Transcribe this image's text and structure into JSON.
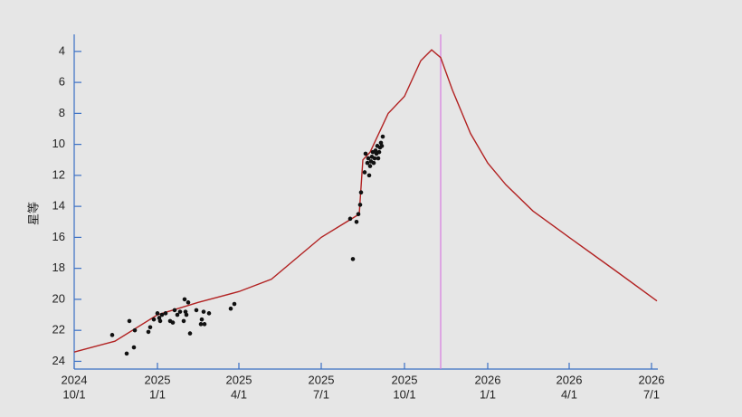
{
  "chart_data": {
    "type": "scatter",
    "y_label": "星等",
    "ylim": [
      24.5,
      2.9
    ],
    "y_inverted": true,
    "yticks": [
      4,
      6,
      8,
      10,
      12,
      14,
      16,
      18,
      20,
      22,
      24
    ],
    "xlim": [
      "2024-10-01",
      "2026-07-08"
    ],
    "xticks": [
      {
        "value": "2024-10-01",
        "label": [
          "2024",
          "10/1"
        ]
      },
      {
        "value": "2025-01-01",
        "label": [
          "2025",
          "1/1"
        ]
      },
      {
        "value": "2025-04-01",
        "label": [
          "2025",
          "4/1"
        ]
      },
      {
        "value": "2025-07-01",
        "label": [
          "2025",
          "7/1"
        ]
      },
      {
        "value": "2025-10-01",
        "label": [
          "2025",
          "10/1"
        ]
      },
      {
        "value": "2026-01-01",
        "label": [
          "2026",
          "1/1"
        ]
      },
      {
        "value": "2026-04-01",
        "label": [
          "2026",
          "4/1"
        ]
      },
      {
        "value": "2026-07-01",
        "label": [
          "2026",
          "7/1"
        ]
      }
    ],
    "axis_color": "#3a6fc4",
    "vline": {
      "x": "2025-11-10",
      "color": "#d77be0"
    },
    "series": [
      {
        "type": "line",
        "color": "#b22222",
        "x": [
          "2024-10-01",
          "2024-11-15",
          "2025-01-01",
          "2025-02-15",
          "2025-04-01",
          "2025-05-07",
          "2025-07-01",
          "2025-08-12",
          "2025-08-16",
          "2025-08-24",
          "2025-09-13",
          "2025-10-01",
          "2025-10-19",
          "2025-10-31",
          "2025-11-10",
          "2025-11-23",
          "2025-12-13",
          "2026-01-01",
          "2026-01-21",
          "2026-02-20",
          "2026-04-01",
          "2026-05-21",
          "2026-07-07"
        ],
        "values": [
          23.4,
          22.7,
          21.0,
          20.2,
          19.5,
          18.7,
          16.0,
          14.5,
          11.0,
          10.5,
          8.0,
          6.9,
          4.6,
          3.9,
          4.4,
          6.5,
          9.3,
          11.2,
          12.6,
          14.3,
          16.0,
          18.1,
          20.1
        ]
      },
      {
        "type": "scatter",
        "color": "#111111",
        "x": [
          "2024-11-12",
          "2024-11-28",
          "2024-12-01",
          "2024-12-06",
          "2024-12-07",
          "2024-12-22",
          "2024-12-24",
          "2024-12-28",
          "2025-01-01",
          "2025-01-03",
          "2025-01-04",
          "2025-01-06",
          "2025-01-10",
          "2025-01-15",
          "2025-01-18",
          "2025-01-20",
          "2025-01-23",
          "2025-01-26",
          "2025-01-30",
          "2025-01-31",
          "2025-02-01",
          "2025-02-02",
          "2025-02-04",
          "2025-02-06",
          "2025-02-13",
          "2025-02-18",
          "2025-02-19",
          "2025-02-21",
          "2025-02-22",
          "2025-02-27",
          "2025-03-23",
          "2025-03-27",
          "2025-08-02",
          "2025-08-05",
          "2025-08-09",
          "2025-08-11",
          "2025-08-13",
          "2025-08-14",
          "2025-08-18",
          "2025-08-19",
          "2025-08-21",
          "2025-08-22",
          "2025-08-23",
          "2025-08-24",
          "2025-08-25",
          "2025-08-26",
          "2025-08-27",
          "2025-08-28",
          "2025-08-29",
          "2025-08-30",
          "2025-08-31",
          "2025-09-01",
          "2025-09-02",
          "2025-09-03",
          "2025-09-04",
          "2025-09-05",
          "2025-09-06",
          "2025-09-07"
        ],
        "values": [
          22.3,
          23.5,
          21.4,
          23.1,
          22.0,
          22.1,
          21.8,
          21.3,
          20.9,
          21.2,
          21.4,
          21.0,
          20.9,
          21.4,
          21.5,
          20.7,
          21.0,
          20.8,
          21.4,
          20.0,
          20.8,
          21.0,
          20.2,
          22.2,
          20.7,
          21.6,
          21.3,
          20.8,
          21.6,
          20.9,
          20.6,
          20.3,
          14.8,
          17.4,
          15.0,
          14.5,
          13.9,
          13.1,
          11.8,
          10.6,
          11.2,
          10.9,
          12.0,
          11.4,
          11.1,
          10.8,
          10.5,
          11.2,
          10.9,
          10.4,
          10.6,
          10.1,
          10.9,
          10.5,
          10.2,
          9.9,
          10.1,
          9.5
        ]
      }
    ]
  }
}
